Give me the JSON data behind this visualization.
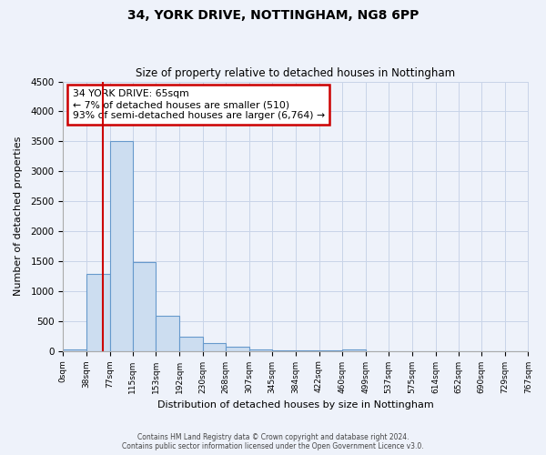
{
  "title1": "34, YORK DRIVE, NOTTINGHAM, NG8 6PP",
  "title2": "Size of property relative to detached houses in Nottingham",
  "xlabel": "Distribution of detached houses by size in Nottingham",
  "ylabel": "Number of detached properties",
  "bar_edges": [
    0,
    38,
    77,
    115,
    153,
    192,
    230,
    268,
    307,
    345,
    384,
    422,
    460,
    499,
    537,
    575,
    614,
    652,
    690,
    729,
    767
  ],
  "bar_heights": [
    30,
    1280,
    3500,
    1480,
    580,
    240,
    130,
    75,
    30,
    10,
    5,
    5,
    30,
    0,
    0,
    0,
    0,
    0,
    0,
    0
  ],
  "bar_color": "#ccddf0",
  "bar_edge_color": "#6699cc",
  "highlight_line_x": 65,
  "highlight_color": "#cc0000",
  "ylim": [
    0,
    4500
  ],
  "xlim": [
    0,
    767
  ],
  "annotation_title": "34 YORK DRIVE: 65sqm",
  "annotation_line1": "← 7% of detached houses are smaller (510)",
  "annotation_line2": "93% of semi-detached houses are larger (6,764) →",
  "footer1": "Contains HM Land Registry data © Crown copyright and database right 2024.",
  "footer2": "Contains public sector information licensed under the Open Government Licence v3.0.",
  "tick_labels": [
    "0sqm",
    "38sqm",
    "77sqm",
    "115sqm",
    "153sqm",
    "192sqm",
    "230sqm",
    "268sqm",
    "307sqm",
    "345sqm",
    "384sqm",
    "422sqm",
    "460sqm",
    "499sqm",
    "537sqm",
    "575sqm",
    "614sqm",
    "652sqm",
    "690sqm",
    "729sqm",
    "767sqm"
  ],
  "ytick_labels": [
    "0",
    "500",
    "1000",
    "1500",
    "2000",
    "2500",
    "3000",
    "3500",
    "4000",
    "4500"
  ],
  "ytick_vals": [
    0,
    500,
    1000,
    1500,
    2000,
    2500,
    3000,
    3500,
    4000,
    4500
  ],
  "grid_color": "#c8d4e8",
  "background_color": "#eef2fa"
}
